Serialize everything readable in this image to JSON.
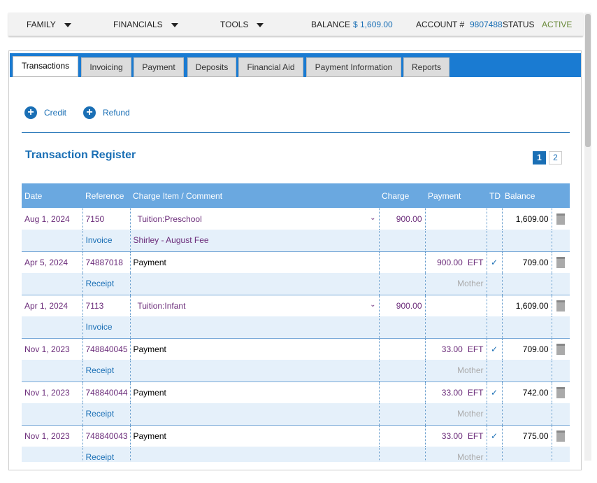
{
  "nav": {
    "family": "FAMILY",
    "financials": "FINANCIALS",
    "tools": "TOOLS",
    "balance_label": "BALANCE",
    "balance_value": "$ 1,609.00",
    "account_label": "ACCOUNT #",
    "account_value": "9807488",
    "status_label": "STATUS",
    "status_value": "ACTIVE"
  },
  "tabs": [
    "Transactions",
    "Invoicing",
    "Payment",
    "Deposits",
    "Financial Aid",
    "Payment Information",
    "Reports"
  ],
  "actions": [
    "Credit",
    "Refund"
  ],
  "register": {
    "title": "Transaction Register",
    "pages": [
      "1",
      "2"
    ],
    "columns": [
      "Date",
      "Reference",
      "Charge Item / Comment",
      "Charge",
      "Payment",
      "TD",
      "Balance"
    ],
    "rows": [
      {
        "date": "Aug 1, 2024",
        "reference": "7150",
        "item": "Tuition:Preschool",
        "charge": "900.00",
        "balance": "1,609.00",
        "doc": "Invoice",
        "comment": "Shirley - August Fee"
      },
      {
        "date": "Apr 5, 2024",
        "reference": "74887018",
        "item": "Payment",
        "payment": "900.00",
        "method": "EFT",
        "td": "✓",
        "balance": "709.00",
        "doc": "Receipt",
        "payer": "Mother"
      },
      {
        "date": "Apr 1, 2024",
        "reference": "7113",
        "item": "Tuition:Infant",
        "charge": "900.00",
        "balance": "1,609.00",
        "doc": "Invoice"
      },
      {
        "date": "Nov 1, 2023",
        "reference": "748840045",
        "item": "Payment",
        "payment": "33.00",
        "method": "EFT",
        "td": "✓",
        "balance": "709.00",
        "doc": "Receipt",
        "payer": "Mother"
      },
      {
        "date": "Nov 1, 2023",
        "reference": "748840044",
        "item": "Payment",
        "payment": "33.00",
        "method": "EFT",
        "td": "✓",
        "balance": "742.00",
        "doc": "Receipt",
        "payer": "Mother"
      },
      {
        "date": "Nov 1, 2023",
        "reference": "748840043",
        "item": "Payment",
        "payment": "33.00",
        "method": "EFT",
        "td": "✓",
        "balance": "775.00",
        "doc": "Receipt",
        "payer": "Mother"
      }
    ]
  }
}
